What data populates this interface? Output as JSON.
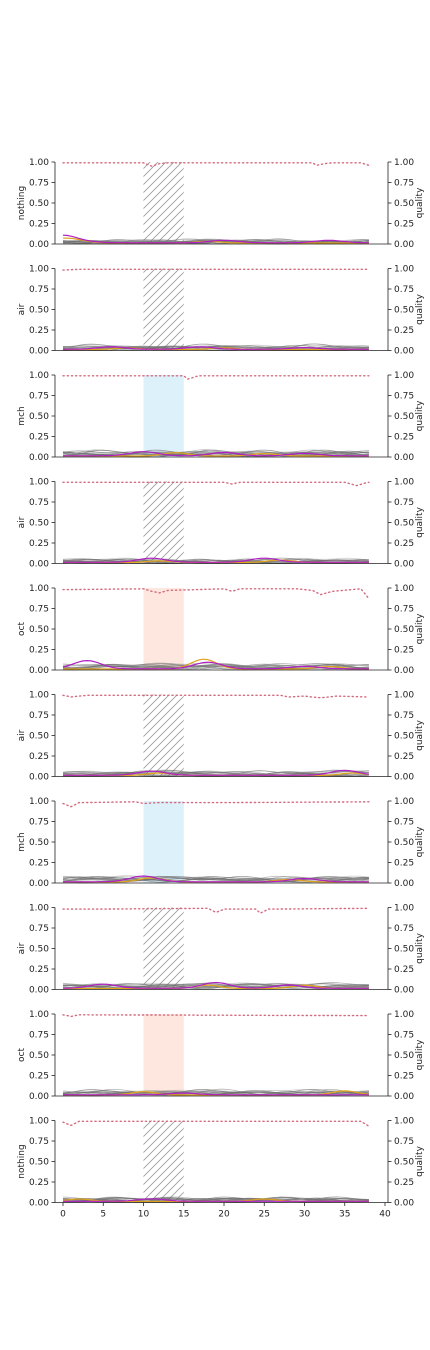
{
  "chart_data": {
    "type": "line",
    "shared_x_axis": {
      "range": [
        0,
        40
      ],
      "ticks": [
        0,
        5,
        10,
        15,
        20,
        25,
        30,
        35,
        40
      ],
      "tick_labels": [
        "0",
        "5",
        "10",
        "15",
        "20",
        "25",
        "30",
        "35",
        "40"
      ]
    },
    "left_axis": {
      "range": [
        0,
        1
      ],
      "ticks": [
        0,
        0.25,
        0.5,
        0.75,
        1
      ],
      "tick_labels": [
        "0.00",
        "0.25",
        "0.50",
        "0.75",
        "1.00"
      ]
    },
    "right_axis": {
      "label": "quality",
      "range": [
        0,
        1
      ],
      "ticks": [
        0,
        0.25,
        0.5,
        0.75,
        1
      ],
      "tick_labels": [
        "0.00",
        "0.25",
        "0.50",
        "0.75",
        "1.00"
      ]
    },
    "grid": false,
    "x_extent": [
      0,
      38
    ],
    "highlight_window": [
      10,
      15
    ],
    "colors": {
      "quality_dots": "#d36b7e",
      "gray_traces": "#6f6f6f",
      "purple_trace": "#b01fc4",
      "orange_trace": "#e0a21a",
      "hatch_window": "#9a9a9a",
      "mch_window": "#bfe6f6",
      "oct_window": "#fbd3c5",
      "axis": "#222222"
    },
    "panels": [
      {
        "ylabel": "nothing",
        "window": "hatch",
        "quality": [
          {
            "x": 0,
            "y": 0.99
          },
          {
            "x": 10,
            "y": 0.99
          },
          {
            "x": 11,
            "y": 0.95
          },
          {
            "x": 12,
            "y": 0.98
          },
          {
            "x": 13,
            "y": 0.99
          },
          {
            "x": 31,
            "y": 0.99
          },
          {
            "x": 31.5,
            "y": 0.96
          },
          {
            "x": 32.5,
            "y": 0.98
          },
          {
            "x": 33.5,
            "y": 0.99
          },
          {
            "x": 37,
            "y": 0.99
          },
          {
            "x": 38,
            "y": 0.96
          }
        ],
        "purple_peaks": [
          {
            "x": 0,
            "y": 0.09
          },
          {
            "x": 3,
            "y": 0.01
          },
          {
            "x": 20,
            "y": 0.03
          },
          {
            "x": 33,
            "y": 0.03
          }
        ],
        "orange_peaks": [
          {
            "x": 0,
            "y": 0.05
          },
          {
            "x": 2,
            "y": 0.02
          },
          {
            "x": 18,
            "y": 0.02
          }
        ],
        "gray_level": 0.03
      },
      {
        "ylabel": "air",
        "window": "hatch",
        "quality": [
          {
            "x": 0,
            "y": 0.98
          },
          {
            "x": 2,
            "y": 0.99
          },
          {
            "x": 24,
            "y": 0.99
          },
          {
            "x": 38,
            "y": 0.99
          }
        ],
        "purple_peaks": [
          {
            "x": 6,
            "y": 0.03
          },
          {
            "x": 17,
            "y": 0.03
          },
          {
            "x": 30,
            "y": 0.02
          }
        ],
        "orange_peaks": [
          {
            "x": 8,
            "y": 0.02
          },
          {
            "x": 20,
            "y": 0.02
          }
        ],
        "gray_level": 0.04
      },
      {
        "ylabel": "mch",
        "window": "mch",
        "quality": [
          {
            "x": 0,
            "y": 0.99
          },
          {
            "x": 15,
            "y": 0.99
          },
          {
            "x": 15.5,
            "y": 0.95
          },
          {
            "x": 16.5,
            "y": 0.98
          },
          {
            "x": 17,
            "y": 0.99
          },
          {
            "x": 38,
            "y": 0.99
          }
        ],
        "purple_peaks": [
          {
            "x": 10,
            "y": 0.05
          },
          {
            "x": 20,
            "y": 0.04
          },
          {
            "x": 30,
            "y": 0.03
          }
        ],
        "orange_peaks": [
          {
            "x": 14,
            "y": 0.04
          },
          {
            "x": 25,
            "y": 0.03
          }
        ],
        "gray_level": 0.05
      },
      {
        "ylabel": "air",
        "window": "hatch",
        "quality": [
          {
            "x": 0,
            "y": 0.99
          },
          {
            "x": 20,
            "y": 0.99
          },
          {
            "x": 21,
            "y": 0.97
          },
          {
            "x": 22,
            "y": 0.99
          },
          {
            "x": 35,
            "y": 0.99
          },
          {
            "x": 36.5,
            "y": 0.95
          },
          {
            "x": 37.5,
            "y": 0.98
          },
          {
            "x": 38,
            "y": 0.99
          }
        ],
        "purple_peaks": [
          {
            "x": 11,
            "y": 0.05
          },
          {
            "x": 25,
            "y": 0.05
          }
        ],
        "orange_peaks": [
          {
            "x": 12,
            "y": 0.02
          },
          {
            "x": 27,
            "y": 0.03
          }
        ],
        "gray_level": 0.03
      },
      {
        "ylabel": "oct",
        "window": "oct",
        "quality": [
          {
            "x": 0,
            "y": 0.98
          },
          {
            "x": 10,
            "y": 0.99
          },
          {
            "x": 11,
            "y": 0.96
          },
          {
            "x": 12,
            "y": 0.94
          },
          {
            "x": 13,
            "y": 0.97
          },
          {
            "x": 20,
            "y": 0.99
          },
          {
            "x": 21,
            "y": 0.96
          },
          {
            "x": 22,
            "y": 0.99
          },
          {
            "x": 29,
            "y": 0.99
          },
          {
            "x": 31,
            "y": 0.97
          },
          {
            "x": 32,
            "y": 0.92
          },
          {
            "x": 33.5,
            "y": 0.96
          },
          {
            "x": 37,
            "y": 0.99
          },
          {
            "x": 38,
            "y": 0.87
          }
        ],
        "purple_peaks": [
          {
            "x": 3,
            "y": 0.1
          },
          {
            "x": 18,
            "y": 0.08
          },
          {
            "x": 30,
            "y": 0.03
          }
        ],
        "orange_peaks": [
          {
            "x": 17.5,
            "y": 0.12
          },
          {
            "x": 33,
            "y": 0.03
          }
        ],
        "gray_level": 0.05
      },
      {
        "ylabel": "air",
        "window": "hatch",
        "quality": [
          {
            "x": 0,
            "y": 0.99
          },
          {
            "x": 1,
            "y": 0.97
          },
          {
            "x": 3,
            "y": 0.99
          },
          {
            "x": 27,
            "y": 0.99
          },
          {
            "x": 28,
            "y": 0.97
          },
          {
            "x": 30,
            "y": 0.98
          },
          {
            "x": 32,
            "y": 0.96
          },
          {
            "x": 34,
            "y": 0.98
          },
          {
            "x": 38,
            "y": 0.97
          }
        ],
        "purple_peaks": [
          {
            "x": 11,
            "y": 0.05
          },
          {
            "x": 35,
            "y": 0.06
          }
        ],
        "orange_peaks": [
          {
            "x": 12,
            "y": 0.03
          },
          {
            "x": 36,
            "y": 0.03
          }
        ],
        "gray_level": 0.04
      },
      {
        "ylabel": "mch",
        "window": "mch",
        "quality": [
          {
            "x": 0,
            "y": 0.97
          },
          {
            "x": 1,
            "y": 0.93
          },
          {
            "x": 2,
            "y": 0.98
          },
          {
            "x": 9,
            "y": 0.99
          },
          {
            "x": 10,
            "y": 0.97
          },
          {
            "x": 12,
            "y": 0.98
          },
          {
            "x": 20,
            "y": 0.98
          },
          {
            "x": 38,
            "y": 0.99
          }
        ],
        "purple_peaks": [
          {
            "x": 10,
            "y": 0.07
          },
          {
            "x": 30,
            "y": 0.04
          }
        ],
        "orange_peaks": [
          {
            "x": 11,
            "y": 0.05
          },
          {
            "x": 28,
            "y": 0.03
          }
        ],
        "gray_level": 0.05
      },
      {
        "ylabel": "air",
        "window": "hatch",
        "quality": [
          {
            "x": 0,
            "y": 0.98
          },
          {
            "x": 4,
            "y": 0.98
          },
          {
            "x": 18,
            "y": 0.99
          },
          {
            "x": 19,
            "y": 0.94
          },
          {
            "x": 20,
            "y": 0.98
          },
          {
            "x": 24,
            "y": 0.98
          },
          {
            "x": 24.5,
            "y": 0.93
          },
          {
            "x": 25.5,
            "y": 0.98
          },
          {
            "x": 38,
            "y": 0.99
          }
        ],
        "purple_peaks": [
          {
            "x": 5,
            "y": 0.05
          },
          {
            "x": 19,
            "y": 0.07
          },
          {
            "x": 28,
            "y": 0.04
          }
        ],
        "orange_peaks": [
          {
            "x": 18,
            "y": 0.04
          },
          {
            "x": 30,
            "y": 0.04
          }
        ],
        "gray_level": 0.05
      },
      {
        "ylabel": "oct",
        "window": "oct",
        "quality": [
          {
            "x": 0,
            "y": 0.99
          },
          {
            "x": 1,
            "y": 0.97
          },
          {
            "x": 2,
            "y": 0.99
          },
          {
            "x": 38,
            "y": 0.98
          }
        ],
        "purple_peaks": [
          {
            "x": 15,
            "y": 0.02
          }
        ],
        "orange_peaks": [
          {
            "x": 10,
            "y": 0.04
          },
          {
            "x": 35,
            "y": 0.05
          }
        ],
        "gray_level": 0.05
      },
      {
        "ylabel": "nothing",
        "window": "hatch",
        "quality": [
          {
            "x": 0,
            "y": 0.98
          },
          {
            "x": 1,
            "y": 0.94
          },
          {
            "x": 2,
            "y": 0.99
          },
          {
            "x": 37,
            "y": 0.99
          },
          {
            "x": 38,
            "y": 0.93
          }
        ],
        "purple_peaks": [
          {
            "x": 11,
            "y": 0.03
          }
        ],
        "orange_peaks": [
          {
            "x": 2,
            "y": 0.03
          },
          {
            "x": 25,
            "y": 0.03
          }
        ],
        "gray_level": 0.04
      }
    ]
  }
}
